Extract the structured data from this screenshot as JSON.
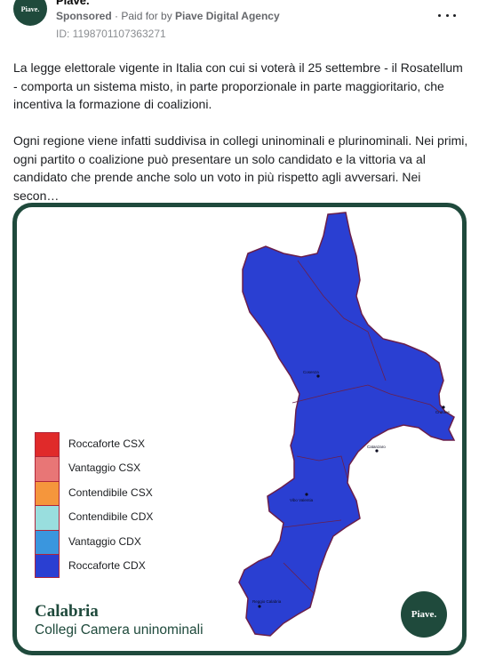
{
  "post": {
    "page_name": "Piave.",
    "avatar_text": "Piave.",
    "sponsored": "Sponsored",
    "separator": " · ",
    "paid_for_by": "Paid for by ",
    "agency": "Piave Digital Agency",
    "ad_id": "ID: 1198701107363271",
    "paragraphs": [
      "La legge elettorale vigente in Italia con cui si voterà il 25 settembre - il Rosatellum - comporta un sistema misto, in parte proporzionale in parte maggioritario, che incentiva la formazione di coalizioni.",
      "Ogni regione viene infatti suddivisa in collegi uninominali e plurinominali. Nei primi, ogni partito o coalizione può presentare un solo candidato e la vittoria va al candidato che prende anche solo un voto in più rispetto agli avversari. Nei secon…"
    ]
  },
  "card": {
    "title": "Calabria",
    "subtitle": "Collegi Camera uninominali",
    "badge": "Piave.",
    "map_fill_color": "#2a3fd2",
    "border_color": "#1f4a3c",
    "cities": [
      "Cosenza",
      "Crotone",
      "Catanzaro",
      "Vibo Valentia",
      "Reggio Calabria"
    ],
    "legend": [
      {
        "label": "Roccaforte CSX",
        "color": "#e02a2a"
      },
      {
        "label": "Vantaggio CSX",
        "color": "#e87676"
      },
      {
        "label": "Contendibile CSX",
        "color": "#f5963c"
      },
      {
        "label": "Contendibile CDX",
        "color": "#99dede"
      },
      {
        "label": "Vantaggio CDX",
        "color": "#3a96de"
      },
      {
        "label": "Roccaforte CDX",
        "color": "#2a3fd2"
      }
    ]
  }
}
